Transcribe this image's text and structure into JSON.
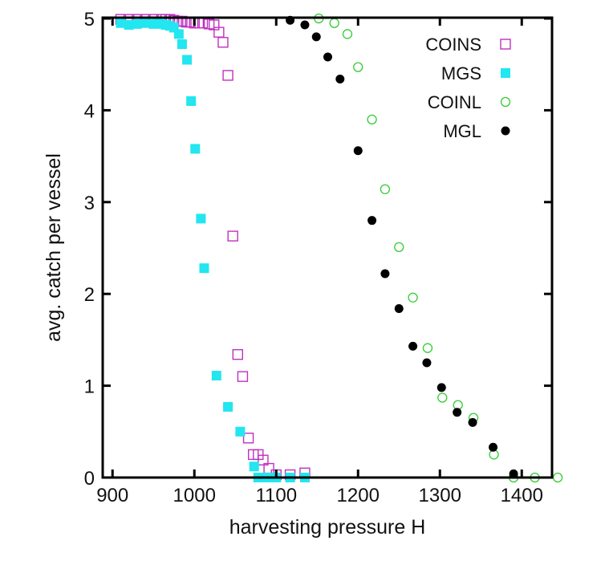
{
  "chart_data": {
    "type": "scatter",
    "title": "",
    "xlabel": "harvesting pressure H",
    "ylabel": "avg. catch per vessel",
    "xlim": [
      888,
      1437
    ],
    "ylim": [
      0,
      5
    ],
    "xticks": [
      900,
      1000,
      1100,
      1200,
      1300,
      1400
    ],
    "yticks": [
      0,
      1,
      2,
      3,
      4,
      5
    ],
    "xtick_labels": [
      "900",
      "1000",
      "1100",
      "1200",
      "1300",
      "1400"
    ],
    "ytick_labels": [
      "0",
      "1",
      "2",
      "3",
      "4",
      "5"
    ],
    "grid": false,
    "legend_position": "top-right",
    "series": [
      {
        "name": "COINS",
        "marker": "open-square",
        "color": "#c030c0",
        "x": [
          910,
          920,
          930,
          940,
          950,
          960,
          965,
          970,
          975,
          980,
          985,
          990,
          995,
          1000,
          1005,
          1010,
          1018,
          1024,
          1030,
          1035,
          1041,
          1047,
          1053,
          1059,
          1066,
          1072,
          1078,
          1084,
          1091,
          1100,
          1117,
          1135
        ],
        "y": [
          4.99,
          4.99,
          4.99,
          4.99,
          4.99,
          4.99,
          4.99,
          4.99,
          4.98,
          4.97,
          4.97,
          4.96,
          4.96,
          4.95,
          4.95,
          4.95,
          4.94,
          4.93,
          4.85,
          4.74,
          4.38,
          2.63,
          1.34,
          1.1,
          0.43,
          0.25,
          0.25,
          0.19,
          0.1,
          0.03,
          0.03,
          0.05
        ]
      },
      {
        "name": "MGS",
        "marker": "filled-square",
        "color": "#22e6f0",
        "x": [
          910,
          920,
          930,
          940,
          950,
          955,
          960,
          965,
          970,
          975,
          981,
          985,
          991,
          996,
          1001,
          1008,
          1012,
          1027,
          1041,
          1056,
          1073,
          1078,
          1084,
          1090,
          1095,
          1100,
          1117,
          1135
        ],
        "y": [
          4.95,
          4.93,
          4.94,
          4.95,
          4.94,
          4.95,
          4.94,
          4.93,
          4.92,
          4.9,
          4.83,
          4.72,
          4.55,
          4.1,
          3.58,
          2.82,
          2.28,
          1.11,
          0.77,
          0.5,
          0.12,
          0.0,
          0.0,
          0.0,
          0.0,
          0.0,
          0.0,
          0.0
        ]
      },
      {
        "name": "COINL",
        "marker": "open-circle",
        "color": "#33cc33",
        "x": [
          1152,
          1171,
          1187,
          1200,
          1217,
          1233,
          1250,
          1267,
          1285,
          1303,
          1322,
          1341,
          1366,
          1390,
          1416,
          1444
        ],
        "y": [
          5.0,
          4.95,
          4.83,
          4.47,
          3.9,
          3.14,
          2.51,
          1.96,
          1.41,
          0.87,
          0.79,
          0.65,
          0.25,
          0.0,
          0.0,
          0.0
        ]
      },
      {
        "name": "MGL",
        "marker": "filled-circle",
        "color": "#000000",
        "x": [
          1117,
          1135,
          1149,
          1163,
          1178,
          1200,
          1217,
          1233,
          1250,
          1267,
          1284,
          1302,
          1321,
          1340,
          1365,
          1390
        ],
        "y": [
          4.98,
          4.93,
          4.8,
          4.58,
          4.34,
          3.56,
          2.8,
          2.22,
          1.84,
          1.43,
          1.25,
          0.98,
          0.71,
          0.6,
          0.33,
          0.04
        ]
      }
    ]
  }
}
